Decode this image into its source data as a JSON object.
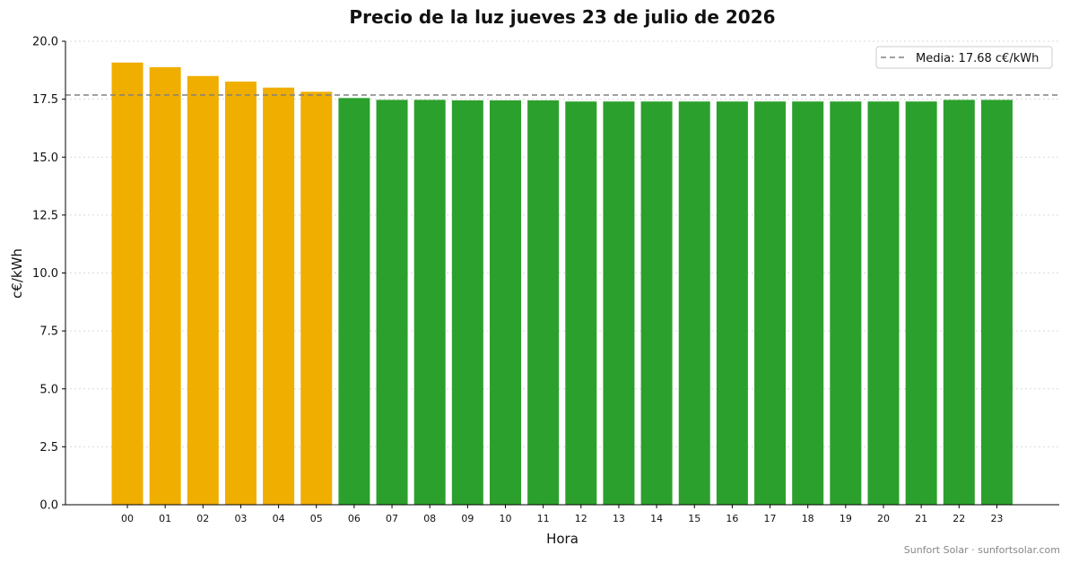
{
  "chart_data": {
    "type": "bar",
    "title": "Precio de la luz jueves 23 de julio de 2026",
    "xlabel": "Hora",
    "ylabel": "c€/kWh",
    "ylim": [
      0,
      20
    ],
    "yticks": [
      "0.0",
      "2.5",
      "5.0",
      "7.5",
      "10.0",
      "12.5",
      "15.0",
      "17.5",
      "20.0"
    ],
    "categories": [
      "00",
      "01",
      "02",
      "03",
      "04",
      "05",
      "06",
      "07",
      "08",
      "09",
      "10",
      "11",
      "12",
      "13",
      "14",
      "15",
      "16",
      "17",
      "18",
      "19",
      "20",
      "21",
      "22",
      "23"
    ],
    "values": [
      19.08,
      18.88,
      18.5,
      18.26,
      18.0,
      17.82,
      17.55,
      17.47,
      17.47,
      17.45,
      17.45,
      17.45,
      17.4,
      17.4,
      17.4,
      17.4,
      17.4,
      17.4,
      17.4,
      17.4,
      17.4,
      17.4,
      17.47,
      17.47
    ],
    "bar_colors": {
      "above_mean": "#f0ae00",
      "below_mean": "#2ca02c"
    },
    "mean": 17.68,
    "mean_line_color": "#808080",
    "legend": {
      "label": "Media: 17.68 c€/kWh",
      "position": "top-right"
    },
    "grid": "horizontal dotted",
    "credit": "Sunfort Solar · sunfortsolar.com"
  }
}
